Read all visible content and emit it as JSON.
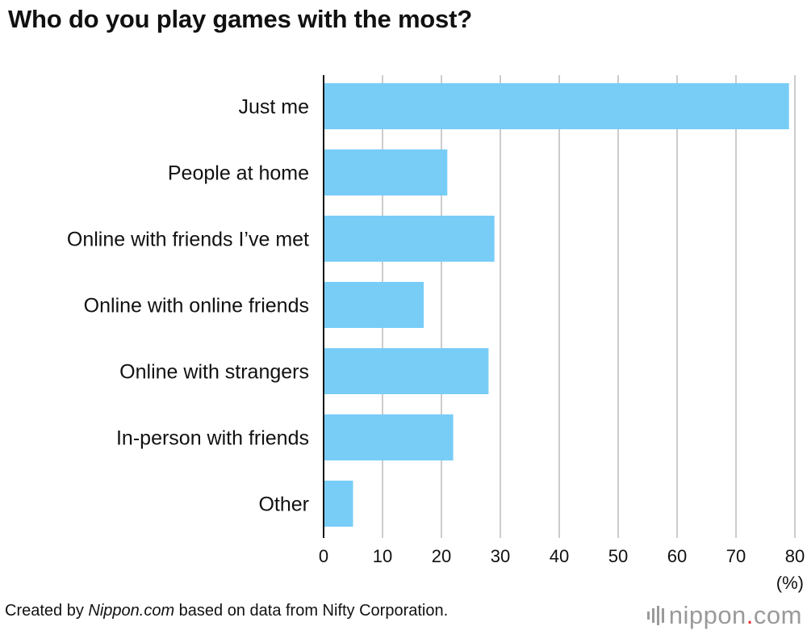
{
  "title": "Who do you play games with the most?",
  "footer": {
    "prefix": "Created by ",
    "source_name": "Nippon.com",
    "suffix": " based on data from Nifty Corporation."
  },
  "brand": {
    "name_before_dot": "nippon",
    "dot": ".",
    "name_after_dot": "com"
  },
  "colors": {
    "bar": "#78cdf7",
    "grid": "#cccccc",
    "axis": "#111111",
    "brand_dot": "#e0302e"
  },
  "chart_data": {
    "type": "bar",
    "orientation": "horizontal",
    "categories": [
      "Just me",
      "People at home",
      "Online with friends I’ve met",
      "Online with online friends",
      "Online with strangers",
      "In-person with friends",
      "Other"
    ],
    "values": [
      79,
      21,
      29,
      17,
      28,
      22,
      5
    ],
    "xlabel": "(%)",
    "xlim": [
      0,
      80
    ],
    "xticks": [
      0,
      10,
      20,
      30,
      40,
      50,
      60,
      70,
      80
    ],
    "grid": true
  }
}
